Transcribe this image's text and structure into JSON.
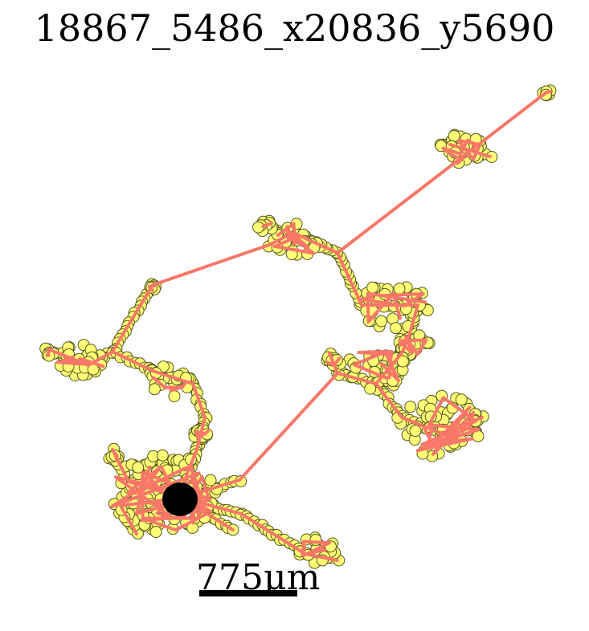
{
  "title": "18867_5486_x20836_y5690",
  "scale_bar": {
    "label": "775μm"
  },
  "colors": {
    "trace": "#f87768",
    "node_fill": "#ffff77",
    "node_edge": "#555522",
    "soma": "#000000",
    "scale_bar": "#000000"
  }
}
